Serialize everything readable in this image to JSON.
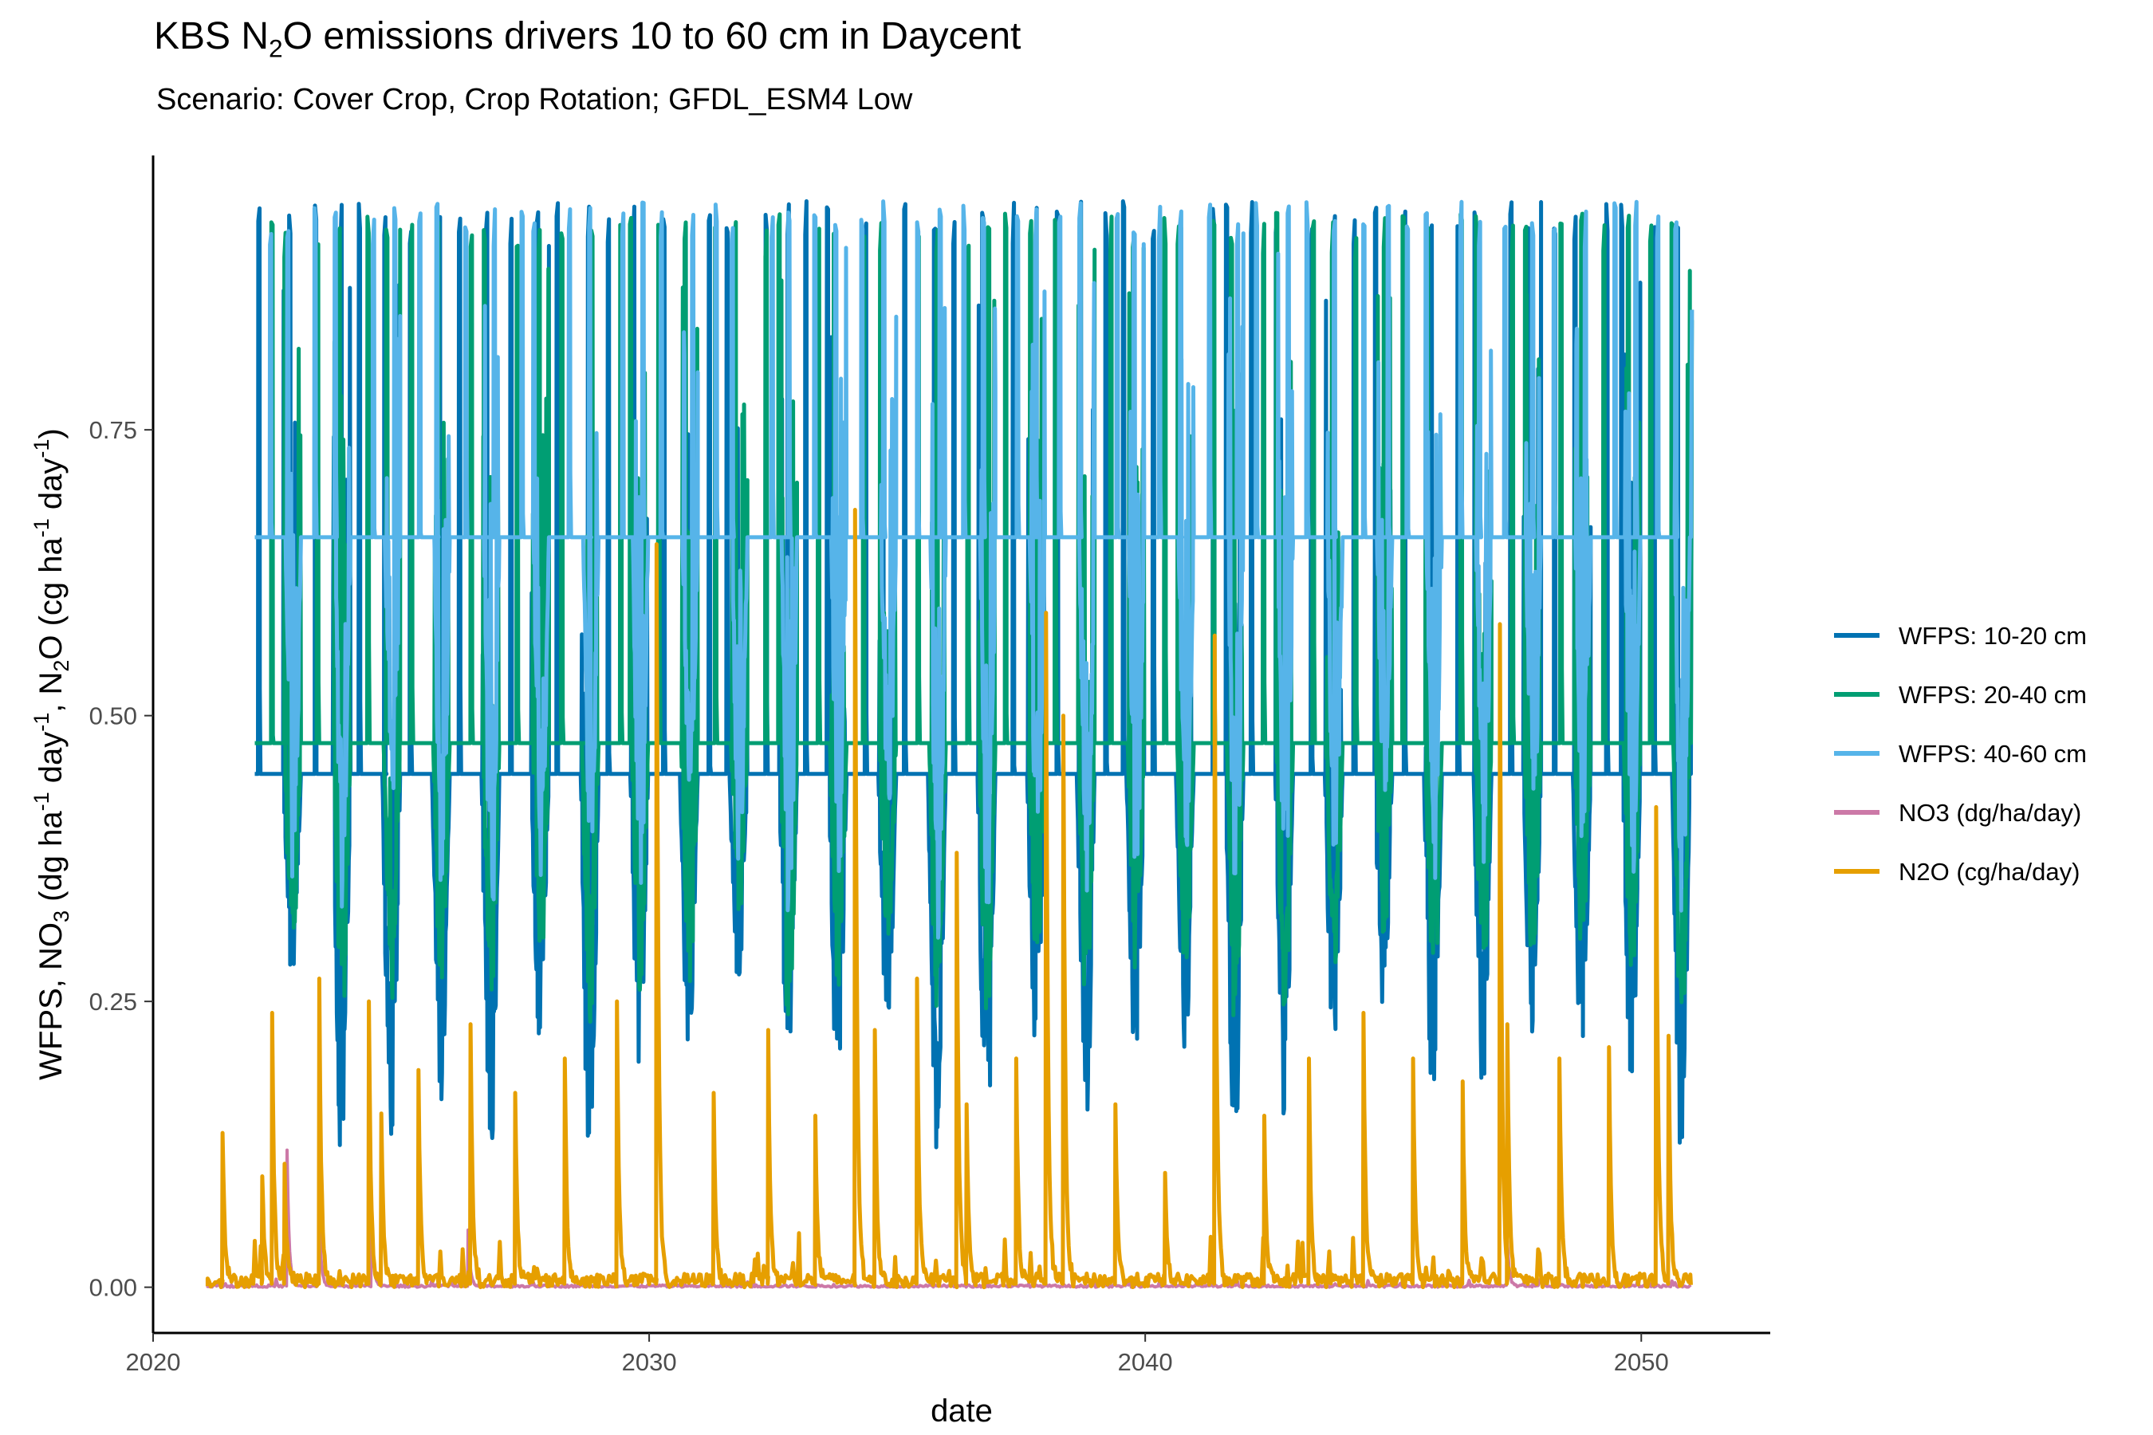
{
  "title": {
    "pre": "KBS N",
    "sub": "2",
    "post": "O emissions drivers 10 to 60 cm in Daycent"
  },
  "subtitle": "Scenario: Cover Crop, Crop Rotation; GFDL_ESM4 Low",
  "chart_data": {
    "type": "line",
    "xlabel": "date",
    "ylabel": "WFPS, NO3 (dg ha-1 day-1, N2O (cg ha-1 day-1)",
    "ylabel_parts": {
      "t1": "WFPS, NO",
      "s1": "3",
      "t2": " (dg ha",
      "p1": "-1",
      "t3": " day",
      "p2": "-1",
      "t4": ", N",
      "s2": "2",
      "t5": "O  (cg ha",
      "p3": "-1",
      "t6": " day",
      "p4": "-1",
      "t7": ")"
    },
    "xlim": [
      2020.0,
      2052.6
    ],
    "ylim": [
      -0.04,
      0.99
    ],
    "x_ticks": [
      2020,
      2030,
      2040,
      2050
    ],
    "x_tick_labels": [
      "2020",
      "2030",
      "2040",
      "2050"
    ],
    "y_ticks": [
      0.0,
      0.25,
      0.5,
      0.75
    ],
    "y_tick_labels": [
      "0.00",
      "0.25",
      "0.50",
      "0.75"
    ],
    "grid": false,
    "legend_position": "right",
    "series": [
      {
        "name": "WFPS: 10-20 cm",
        "color": "#0072B2"
      },
      {
        "name": "WFPS: 20-40 cm",
        "color": "#009E73"
      },
      {
        "name": "WFPS: 40-60 cm",
        "color": "#56B4E9"
      },
      {
        "name": "NO3 (dg/ha/day)",
        "color": "#CC79A7"
      },
      {
        "name": "N2O (cg/ha/day)",
        "color": "#E69F00"
      }
    ],
    "wfps_years": [
      2022,
      2023,
      2024,
      2025,
      2026,
      2027,
      2028,
      2029,
      2030,
      2031,
      2032,
      2033,
      2034,
      2035,
      2036,
      2037,
      2038,
      2039,
      2040,
      2041,
      2042,
      2043,
      2044,
      2045,
      2046,
      2047,
      2048,
      2049,
      2050
    ],
    "wfps_10_20_min": [
      0.27,
      0.1,
      0.13,
      0.16,
      0.1,
      0.2,
      0.1,
      0.19,
      0.2,
      0.26,
      0.2,
      0.17,
      0.22,
      0.1,
      0.1,
      0.2,
      0.11,
      0.2,
      0.2,
      0.11,
      0.15,
      0.2,
      0.24,
      0.13,
      0.17,
      0.22,
      0.2,
      0.18,
      0.1
    ],
    "wfps_20_40_min": [
      0.28,
      0.23,
      0.25,
      0.26,
      0.25,
      0.27,
      0.23,
      0.26,
      0.26,
      0.32,
      0.22,
      0.25,
      0.3,
      0.23,
      0.23,
      0.28,
      0.24,
      0.27,
      0.27,
      0.22,
      0.23,
      0.27,
      0.3,
      0.23,
      0.26,
      0.28,
      0.28,
      0.26,
      0.22
    ],
    "wfps_40_60_min": [
      0.34,
      0.32,
      0.4,
      0.33,
      0.3,
      0.35,
      0.38,
      0.34,
      0.42,
      0.35,
      0.3,
      0.36,
      0.42,
      0.28,
      0.32,
      0.38,
      0.33,
      0.35,
      0.38,
      0.33,
      0.33,
      0.36,
      0.42,
      0.34,
      0.37,
      0.4,
      0.38,
      0.35,
      0.3
    ],
    "n2o_peaks": [
      [
        2021.4,
        0.135
      ],
      [
        2022.2,
        0.097
      ],
      [
        2022.4,
        0.24
      ],
      [
        2022.65,
        0.108
      ],
      [
        2023.35,
        0.27
      ],
      [
        2024.35,
        0.25
      ],
      [
        2024.6,
        0.152
      ],
      [
        2025.35,
        0.19
      ],
      [
        2026.4,
        0.23
      ],
      [
        2027.3,
        0.17
      ],
      [
        2028.3,
        0.2
      ],
      [
        2029.35,
        0.25
      ],
      [
        2030.15,
        0.65
      ],
      [
        2031.3,
        0.17
      ],
      [
        2032.4,
        0.225
      ],
      [
        2033.35,
        0.15
      ],
      [
        2034.15,
        0.68
      ],
      [
        2034.55,
        0.225
      ],
      [
        2035.4,
        0.27
      ],
      [
        2036.2,
        0.38
      ],
      [
        2036.4,
        0.16
      ],
      [
        2037.4,
        0.2
      ],
      [
        2038.0,
        0.59
      ],
      [
        2038.35,
        0.5
      ],
      [
        2039.4,
        0.16
      ],
      [
        2040.4,
        0.1
      ],
      [
        2041.4,
        0.57
      ],
      [
        2042.4,
        0.15
      ],
      [
        2043.3,
        0.2
      ],
      [
        2044.4,
        0.24
      ],
      [
        2045.4,
        0.2
      ],
      [
        2046.4,
        0.18
      ],
      [
        2047.15,
        0.58
      ],
      [
        2047.3,
        0.23
      ],
      [
        2048.35,
        0.2
      ],
      [
        2049.35,
        0.21
      ],
      [
        2050.3,
        0.42
      ],
      [
        2050.55,
        0.22
      ]
    ],
    "no3_peaks": [
      [
        2022.7,
        0.12
      ],
      [
        2023.35,
        0.06
      ],
      [
        2024.4,
        0.07
      ],
      [
        2026.35,
        0.05
      ],
      [
        2047.3,
        0.04
      ]
    ]
  }
}
